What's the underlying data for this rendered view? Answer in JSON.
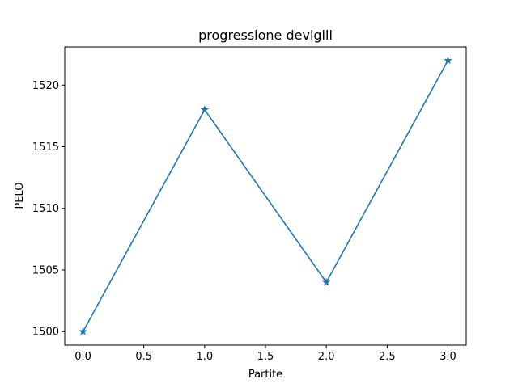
{
  "chart_data": {
    "type": "line",
    "title": "progressione devigili",
    "xlabel": "Partite",
    "ylabel": "PELO",
    "x": [
      0,
      1,
      2,
      3
    ],
    "series": [
      {
        "values": [
          1500,
          1518,
          1504,
          1522
        ],
        "color": "#1f77b4",
        "marker": "star-marker"
      }
    ],
    "xlim": [
      -0.15,
      3.15
    ],
    "ylim": [
      1498.9,
      1523.1
    ],
    "xticks": [
      0.0,
      0.5,
      1.0,
      1.5,
      2.0,
      2.5,
      3.0
    ],
    "xtick_labels": [
      "0.0",
      "0.5",
      "1.0",
      "1.5",
      "2.0",
      "2.5",
      "3.0"
    ],
    "yticks": [
      1500,
      1505,
      1510,
      1515,
      1520
    ],
    "ytick_labels": [
      "1500",
      "1505",
      "1510",
      "1515",
      "1520"
    ],
    "grid": false,
    "legend": "none"
  }
}
